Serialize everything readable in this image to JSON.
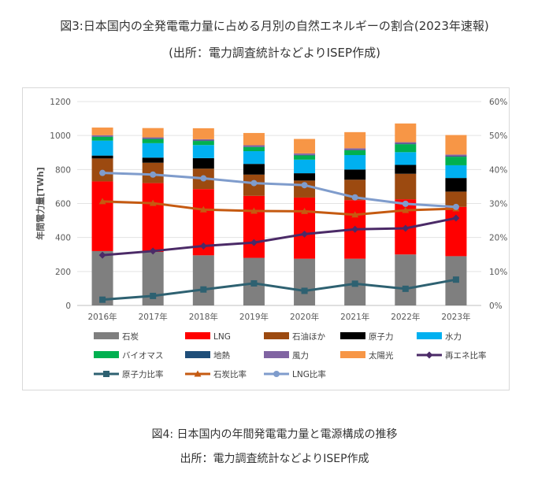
{
  "header": {
    "title": "図3:日本国内の全発電電力量に占める月別の自然エネルギーの割合(2023年速報)",
    "subtitle": "(出所：電力調査統計などよりISEP作成)"
  },
  "caption": {
    "title": "図4: 日本国内の年間発電電力量と電源構成の推移",
    "source": "出所：電力調査統計などよりISEP作成"
  },
  "chart_data": {
    "type": "bar",
    "stacked": true,
    "ylabel": "年間電力量[TWh]",
    "ylim": [
      0,
      1200
    ],
    "y_ticks": [
      "0",
      "200",
      "400",
      "600",
      "800",
      "1000",
      "1200"
    ],
    "y2lim": [
      0,
      60
    ],
    "y2_ticks": [
      "0%",
      "10%",
      "20%",
      "30%",
      "40%",
      "50%",
      "60%"
    ],
    "grid": true,
    "legend_position": "bottom",
    "categories": [
      "2016年",
      "2017年",
      "2018年",
      "2019年",
      "2020年",
      "2021年",
      "2022年",
      "2023年"
    ],
    "series": [
      {
        "name": "石炭",
        "color": "#7f7f7f",
        "values": [
          320,
          315,
          295,
          280,
          275,
          275,
          300,
          290
        ]
      },
      {
        "name": "LNG",
        "color": "#ff0000",
        "values": [
          410,
          405,
          390,
          365,
          360,
          345,
          325,
          290
        ]
      },
      {
        "name": "石油ほか",
        "color": "#9c4a10",
        "values": [
          135,
          120,
          120,
          125,
          100,
          120,
          150,
          90
        ]
      },
      {
        "name": "原子力",
        "color": "#000000",
        "values": [
          17,
          30,
          62,
          63,
          43,
          60,
          52,
          80
        ]
      },
      {
        "name": "水力",
        "color": "#00b0f0",
        "values": [
          88,
          85,
          77,
          75,
          80,
          85,
          75,
          75
        ]
      },
      {
        "name": "バイオマス",
        "color": "#00b050",
        "values": [
          22,
          24,
          24,
          24,
          25,
          28,
          47,
          50
        ]
      },
      {
        "name": "地熱",
        "color": "#1f4e79",
        "values": [
          3,
          3,
          3,
          3,
          3,
          3,
          3,
          3
        ]
      },
      {
        "name": "風力",
        "color": "#8064a2",
        "values": [
          7,
          7,
          7,
          8,
          9,
          9,
          9,
          10
        ]
      },
      {
        "name": "太陽光",
        "color": "#f79646",
        "values": [
          45,
          55,
          65,
          72,
          85,
          95,
          110,
          115
        ]
      }
    ],
    "lines": [
      {
        "name": "再エネ比率",
        "color": "#4b2a67",
        "marker": "diamond",
        "values": [
          14.8,
          16.0,
          17.5,
          18.5,
          21.0,
          22.4,
          22.7,
          25.7
        ]
      },
      {
        "name": "原子力比率",
        "color": "#2e6171",
        "marker": "square",
        "values": [
          1.7,
          2.8,
          4.7,
          6.5,
          4.3,
          6.4,
          4.9,
          7.6
        ]
      },
      {
        "name": "石炭比率",
        "color": "#c55a11",
        "marker": "triangle",
        "values": [
          30.6,
          30.1,
          28.2,
          27.8,
          27.7,
          26.7,
          28.0,
          28.5
        ]
      },
      {
        "name": "LNG比率",
        "color": "#7f9ccc",
        "marker": "circle",
        "values": [
          39.0,
          38.5,
          37.4,
          36.0,
          35.4,
          31.8,
          29.9,
          29.0
        ]
      }
    ]
  }
}
